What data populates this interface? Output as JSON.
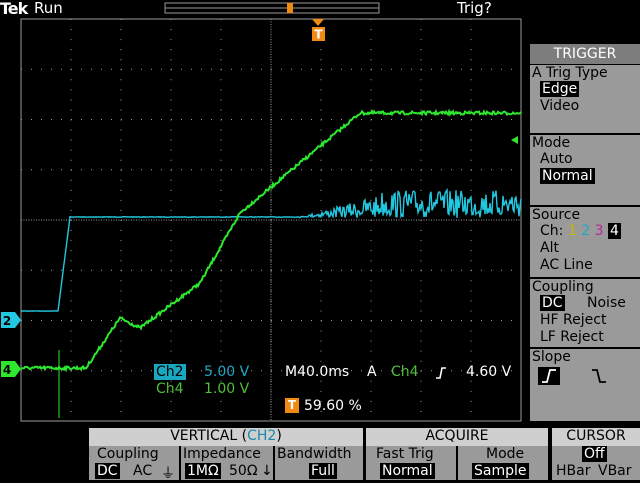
{
  "status": {
    "brand": "Tek",
    "run_state": "Run",
    "trigger_state": "Trig?"
  },
  "markers": {
    "trigger_pos_label": "T",
    "ch2_label": "2",
    "ch4_label": "4"
  },
  "readouts": {
    "ch2_name": "Ch2",
    "ch2_scale": "5.00 V",
    "ch4_name": "Ch4",
    "ch4_scale": "1.00 V",
    "timebase": "M40.0ms",
    "trig_source_label": "A",
    "trig_channel": "Ch4",
    "trig_level": "4.60 V",
    "trig_pos_marker": "T",
    "trig_pos_percent": "59.60 %"
  },
  "trigger_menu": {
    "title": "TRIGGER",
    "type_label": "A Trig Type",
    "type_options": [
      "Edge",
      "Video"
    ],
    "type_selected": "Edge",
    "mode_label": "Mode",
    "mode_options": [
      "Auto",
      "Normal"
    ],
    "mode_selected": "Normal",
    "source_label": "Source",
    "source_ch_prefix": "Ch:",
    "source_channels": [
      "1",
      "2",
      "3",
      "4"
    ],
    "source_selected": "4",
    "source_alt": "Alt",
    "source_acline": "AC Line",
    "coupling_label": "Coupling",
    "coupling_dc": "DC",
    "coupling_noise": "Noise",
    "coupling_hf": "HF Reject",
    "coupling_lf": "LF Reject",
    "slope_label": "Slope"
  },
  "bottom_menu": {
    "vertical_title": "VERTICAL",
    "vertical_channel": "CH2",
    "coupling_label": "Coupling",
    "coupling_dc": "DC",
    "coupling_ac": "AC",
    "impedance_label": "Impedance",
    "impedance_1m": "1MΩ",
    "impedance_50": "50Ω",
    "bandwidth_label": "Bandwidth",
    "bandwidth_value": "Full",
    "acquire_title": "ACQUIRE",
    "fasttrig_label": "Fast Trig",
    "fasttrig_value": "Normal",
    "mode_label": "Mode",
    "mode_value": "Sample",
    "cursor_title": "CURSOR",
    "cursor_value": "Off",
    "cursor_hbar": "HBar",
    "cursor_vbar": "VBar"
  },
  "colors": {
    "ch2": "#22c8e0",
    "ch4": "#2ee82e",
    "grid": "#9a9a9a",
    "trigger_marker": "#f08a14"
  }
}
